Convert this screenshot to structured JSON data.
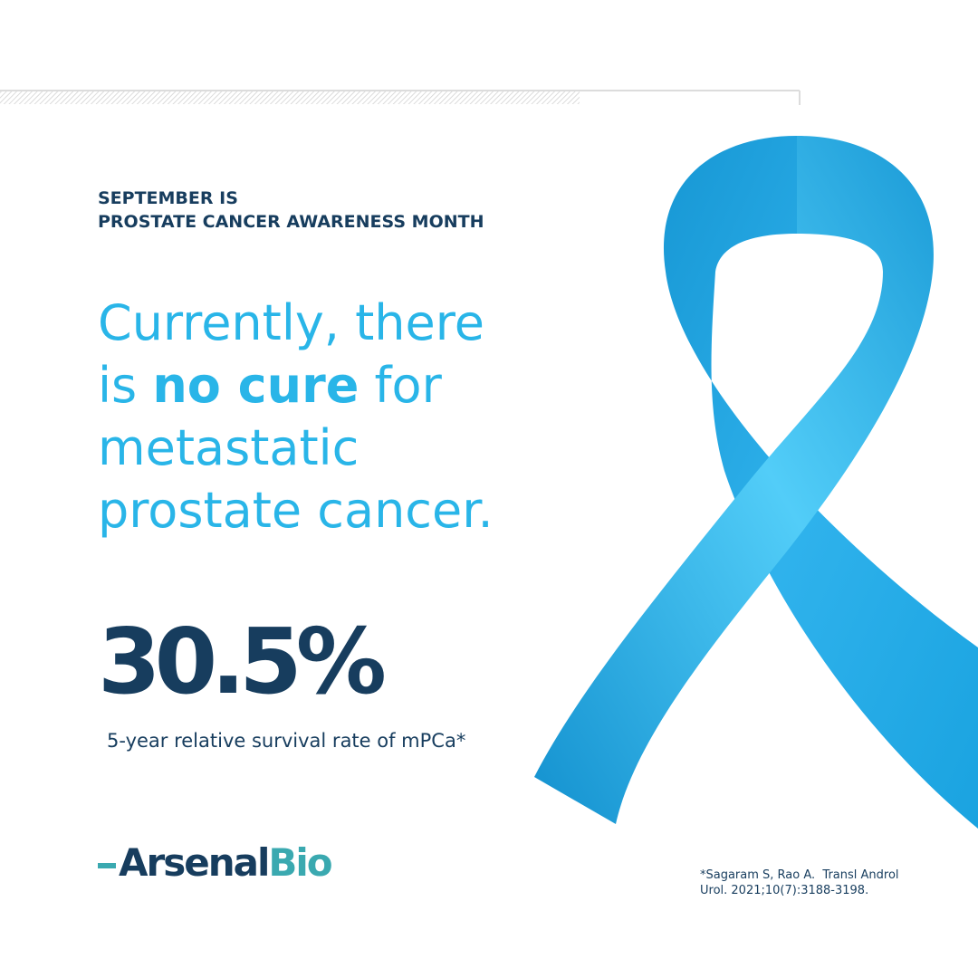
{
  "header": {
    "lines": [
      "SEPTEMBER IS",
      "PROSTATE CANCER AWARENESS MONTH"
    ]
  },
  "headline": {
    "line1": "Currently, there",
    "line2_before": "is",
    "line2_bold": "no cure",
    "line2_after": "for",
    "line3": "metastatic",
    "line4": "prostate cancer."
  },
  "stat": {
    "value": "30.5%",
    "caption": "5-year relative survival rate of mPCa*"
  },
  "logo": {
    "part1": "Arsenal",
    "part2": "Bio"
  },
  "citation": {
    "lines": [
      "*Sagaram S, Rao A.  Transl Androl",
      "Urol. 2021;10(7):3188-3198."
    ]
  }
}
